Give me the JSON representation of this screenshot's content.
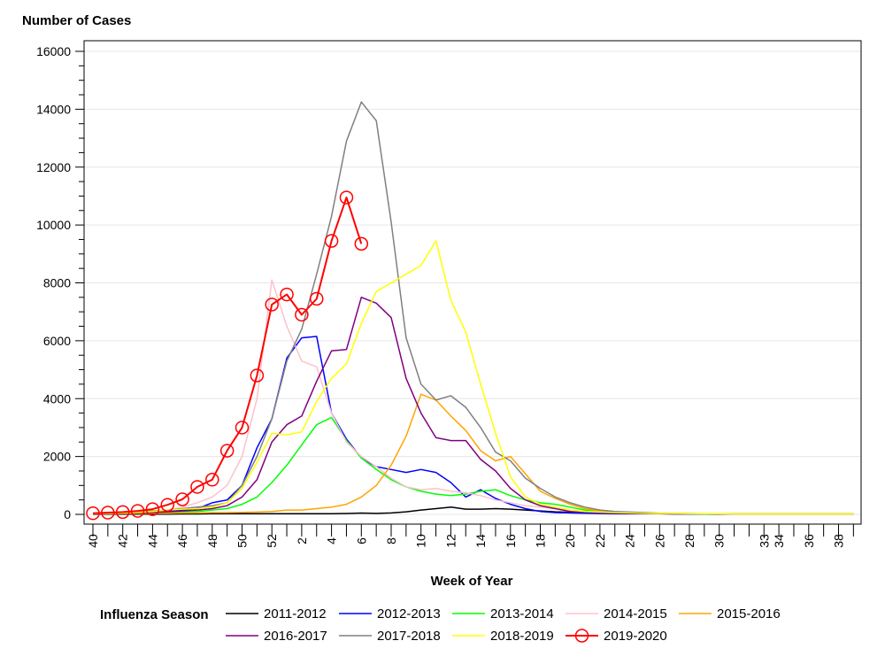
{
  "chart_data": {
    "type": "line",
    "y_title": "Number of Cases",
    "x_title": "Week of Year",
    "legend_title": "Influenza Season",
    "ylim": [
      0,
      16000
    ],
    "y_ticks": [
      0,
      2000,
      4000,
      6000,
      8000,
      10000,
      12000,
      14000,
      16000
    ],
    "x_weeks": [
      40,
      41,
      42,
      43,
      44,
      45,
      46,
      47,
      48,
      49,
      50,
      51,
      52,
      1,
      2,
      3,
      4,
      5,
      6,
      7,
      8,
      9,
      10,
      11,
      12,
      13,
      14,
      15,
      16,
      17,
      18,
      19,
      20,
      21,
      22,
      23,
      24,
      25,
      26,
      27,
      28,
      29,
      30,
      31,
      32,
      33,
      34,
      35,
      36,
      37,
      38,
      39
    ],
    "x_tick_labels": [
      "40",
      "42",
      "44",
      "46",
      "48",
      "50",
      "52",
      "2",
      "4",
      "6",
      "8",
      "10",
      "12",
      "14",
      "16",
      "18",
      "20",
      "22",
      "24",
      "26",
      "28",
      "30",
      "33",
      "34",
      "36",
      "38"
    ],
    "x_tick_indices": [
      0,
      2,
      4,
      6,
      8,
      10,
      12,
      14,
      16,
      18,
      20,
      22,
      24,
      26,
      28,
      30,
      32,
      34,
      36,
      38,
      40,
      42,
      45,
      46,
      48,
      50
    ],
    "gridlines": true,
    "series": [
      {
        "name": "2011-2012",
        "color": "#000000",
        "marker": false,
        "values": [
          10,
          10,
          10,
          10,
          10,
          10,
          15,
          15,
          20,
          20,
          20,
          25,
          25,
          25,
          25,
          25,
          25,
          30,
          45,
          35,
          50,
          90,
          150,
          200,
          250,
          180,
          180,
          200,
          180,
          150,
          120,
          90,
          70,
          60,
          50,
          40,
          30,
          20,
          20,
          15,
          15,
          15,
          10,
          10,
          10,
          10,
          10,
          10,
          10,
          10,
          10,
          10
        ]
      },
      {
        "name": "2012-2013",
        "color": "#0000ff",
        "marker": false,
        "values": [
          30,
          30,
          40,
          60,
          80,
          100,
          150,
          200,
          400,
          500,
          1000,
          2300,
          3300,
          5400,
          6100,
          6150,
          3500,
          2600,
          1950,
          1650,
          1550,
          1450,
          1550,
          1450,
          1100,
          600,
          850,
          550,
          350,
          200,
          100,
          60,
          50,
          40,
          30,
          20,
          20,
          20,
          20,
          15,
          15,
          15,
          15,
          10,
          10,
          10,
          10,
          10,
          10,
          10,
          10,
          10
        ]
      },
      {
        "name": "2013-2014",
        "color": "#00ff00",
        "marker": false,
        "values": [
          20,
          20,
          30,
          40,
          50,
          60,
          80,
          100,
          150,
          200,
          350,
          600,
          1100,
          1700,
          2400,
          3100,
          3350,
          2550,
          1950,
          1550,
          1200,
          950,
          800,
          700,
          650,
          700,
          800,
          850,
          650,
          500,
          400,
          350,
          250,
          150,
          100,
          70,
          50,
          40,
          30,
          20,
          20,
          15,
          15,
          10,
          10,
          10,
          10,
          10,
          10,
          10,
          10,
          10
        ]
      },
      {
        "name": "2014-2015",
        "color": "#ffc0cb",
        "marker": false,
        "values": [
          30,
          40,
          50,
          70,
          100,
          150,
          250,
          400,
          600,
          1000,
          2000,
          4000,
          8100,
          6500,
          5300,
          5100,
          3500,
          2500,
          2000,
          1650,
          1250,
          950,
          850,
          900,
          800,
          750,
          650,
          500,
          400,
          300,
          250,
          200,
          150,
          100,
          80,
          60,
          50,
          40,
          30,
          30,
          20,
          20,
          20,
          15,
          15,
          15,
          15,
          15,
          15,
          15,
          15,
          15
        ]
      },
      {
        "name": "2015-2016",
        "color": "#ffa500",
        "marker": false,
        "values": [
          30,
          30,
          30,
          30,
          40,
          40,
          50,
          50,
          60,
          60,
          70,
          80,
          100,
          150,
          150,
          200,
          250,
          350,
          600,
          1000,
          1700,
          2700,
          4150,
          3950,
          3400,
          2900,
          2200,
          1850,
          2000,
          1400,
          800,
          550,
          350,
          200,
          120,
          80,
          60,
          40,
          30,
          30,
          20,
          20,
          20,
          15,
          15,
          15,
          15,
          15,
          15,
          15,
          15,
          15
        ]
      },
      {
        "name": "2016-2017",
        "color": "#800080",
        "marker": false,
        "values": [
          30,
          30,
          40,
          50,
          70,
          90,
          120,
          150,
          200,
          300,
          600,
          1200,
          2500,
          3100,
          3400,
          4600,
          5650,
          5700,
          7500,
          7300,
          6800,
          4700,
          3500,
          2650,
          2550,
          2550,
          1900,
          1500,
          900,
          500,
          300,
          200,
          100,
          80,
          60,
          50,
          40,
          30,
          30,
          20,
          20,
          20,
          15,
          15,
          15,
          15,
          15,
          15,
          15,
          15,
          15,
          15
        ]
      },
      {
        "name": "2017-2018",
        "color": "#808080",
        "marker": false,
        "values": [
          30,
          40,
          60,
          80,
          120,
          150,
          200,
          250,
          300,
          400,
          1000,
          2000,
          3300,
          5300,
          6400,
          8300,
          10300,
          12900,
          14250,
          13600,
          10100,
          6100,
          4500,
          3950,
          4100,
          3700,
          3000,
          2150,
          1850,
          1250,
          900,
          600,
          400,
          250,
          150,
          100,
          80,
          60,
          40,
          30,
          30,
          20,
          20,
          20,
          20,
          20,
          20,
          20,
          20,
          20,
          20,
          20
        ]
      },
      {
        "name": "2018-2019",
        "color": "#ffff00",
        "marker": false,
        "values": [
          30,
          40,
          50,
          70,
          100,
          150,
          180,
          200,
          250,
          400,
          900,
          1800,
          2800,
          2750,
          2850,
          3900,
          4700,
          5200,
          6600,
          7700,
          8000,
          8300,
          8600,
          9450,
          7400,
          6300,
          4500,
          2800,
          1300,
          600,
          350,
          250,
          150,
          100,
          80,
          60,
          50,
          40,
          30,
          30,
          20,
          20,
          20,
          15,
          15,
          15,
          15,
          15,
          15,
          15,
          15,
          15
        ]
      },
      {
        "name": "2019-2020",
        "color": "#ff0000",
        "marker": true,
        "values": [
          40,
          60,
          80,
          120,
          180,
          330,
          520,
          950,
          1200,
          2200,
          3000,
          4800,
          7250,
          7600,
          6900,
          7450,
          9450,
          10950,
          9350
        ]
      }
    ]
  }
}
